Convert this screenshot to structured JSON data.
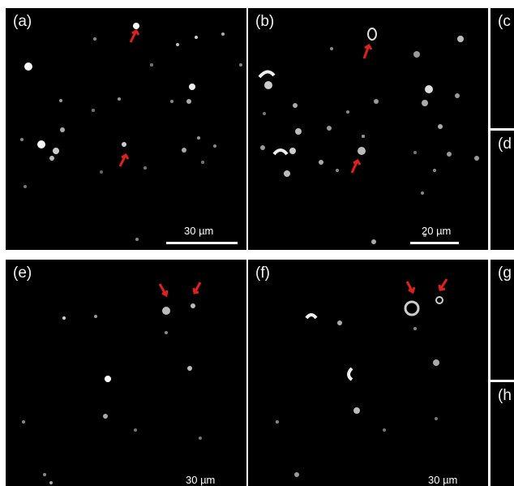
{
  "panels": {
    "a": {
      "label": "(a)",
      "scale": "30 µm"
    },
    "b": {
      "label": "(b)",
      "scale": "20 µm"
    },
    "c": {
      "label": "(c"
    },
    "d": {
      "label": "(d"
    },
    "e": {
      "label": "(e)",
      "scale": "30 µm"
    },
    "f": {
      "label": "(f)",
      "scale": "30 µm"
    },
    "g": {
      "label": "(g"
    },
    "h": {
      "label": "(h"
    }
  },
  "colors": {
    "background": "#000000",
    "arrow": "#e0201c",
    "particle": "#e8e8e8"
  }
}
